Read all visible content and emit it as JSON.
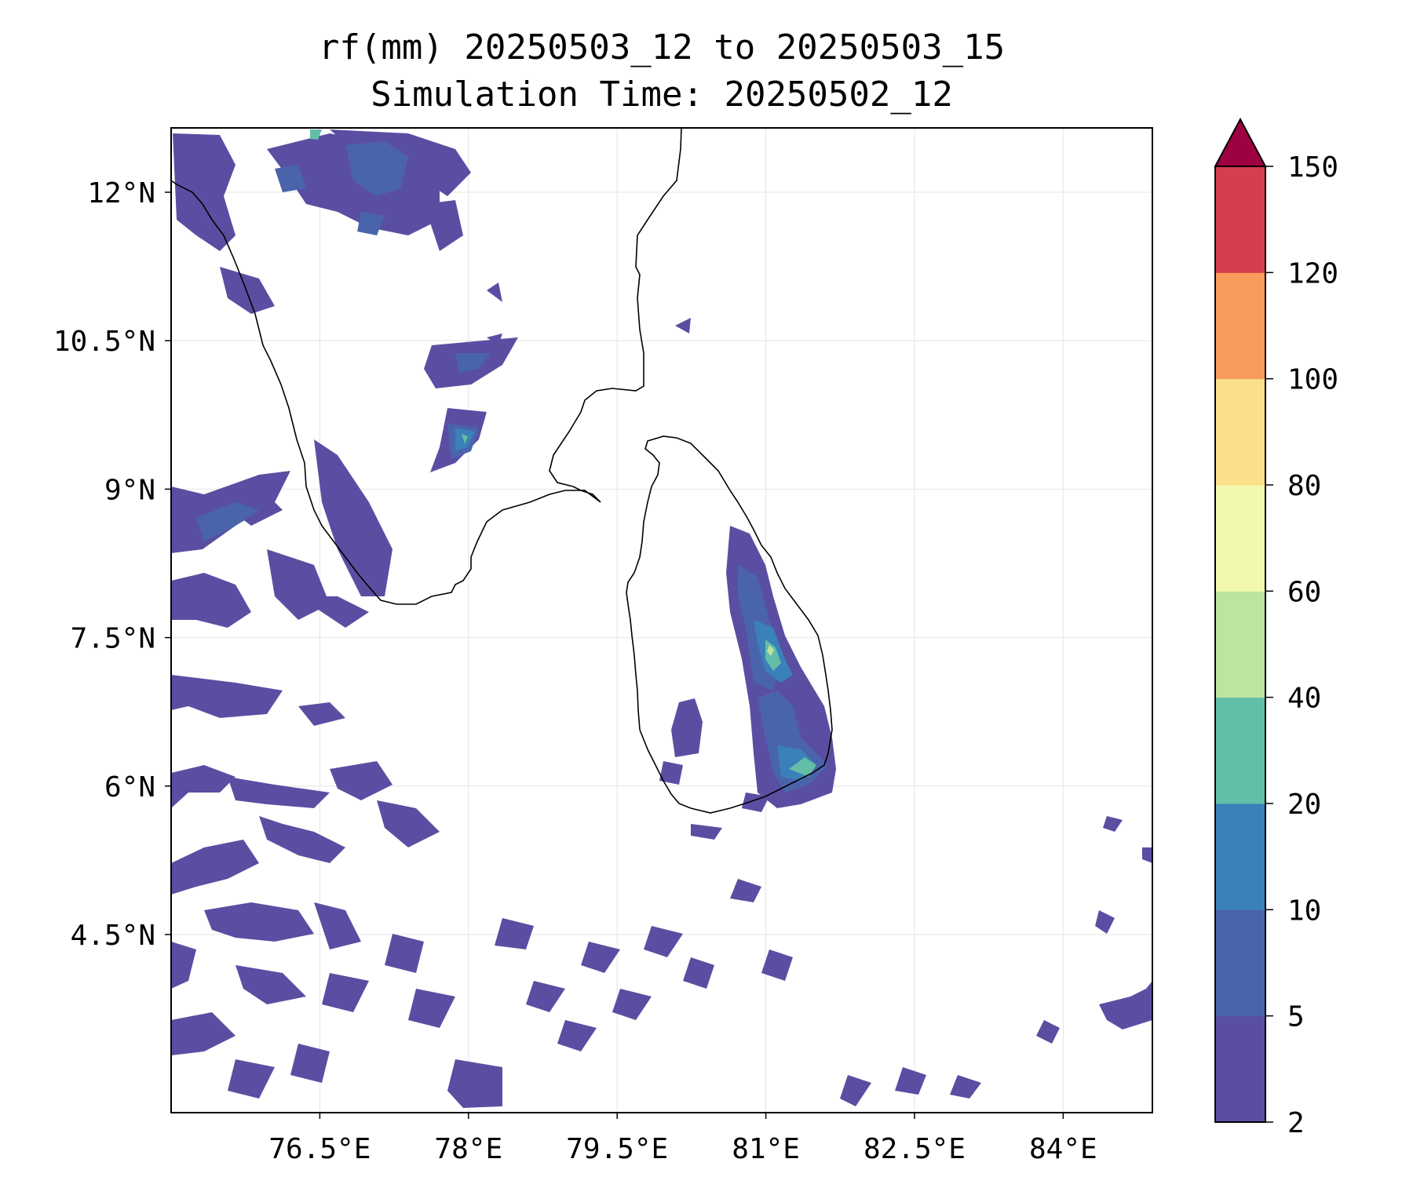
{
  "title": {
    "line1": "rf(mm) 20250503_12 to 20250503_15",
    "line2": "Simulation Time: 20250502_12"
  },
  "map": {
    "extent": {
      "lon_min": 75.0,
      "lon_max": 84.9,
      "lat_min": 2.7,
      "lat_max": 12.65
    },
    "x_ticks": [
      {
        "value": 76.5,
        "label": "76.5°E"
      },
      {
        "value": 78.0,
        "label": "78°E"
      },
      {
        "value": 79.5,
        "label": "79.5°E"
      },
      {
        "value": 81.0,
        "label": "81°E"
      },
      {
        "value": 82.5,
        "label": "82.5°E"
      },
      {
        "value": 84.0,
        "label": "84°E"
      }
    ],
    "y_ticks": [
      {
        "value": 12.0,
        "label": "12°N"
      },
      {
        "value": 10.5,
        "label": "10.5°N"
      },
      {
        "value": 9.0,
        "label": "9°N"
      },
      {
        "value": 7.5,
        "label": "7.5°N"
      },
      {
        "value": 6.0,
        "label": "6°N"
      },
      {
        "value": 4.5,
        "label": "4.5°N"
      }
    ],
    "grid": true,
    "coastline_color": "#000000",
    "colormap": "Spectral_r"
  },
  "colorbar": {
    "levels": [
      "2",
      "5",
      "10",
      "20",
      "40",
      "60",
      "80",
      "100",
      "120",
      "150"
    ],
    "colors": [
      "#5a4ea2",
      "#4a64ac",
      "#3a80b9",
      "#62bea6",
      "#bde5a0",
      "#f2f9ad",
      "#fbdf8b",
      "#f99b5c",
      "#d53e4f"
    ],
    "extend_color": "#9e0142",
    "extend": "max",
    "placement": "right"
  }
}
